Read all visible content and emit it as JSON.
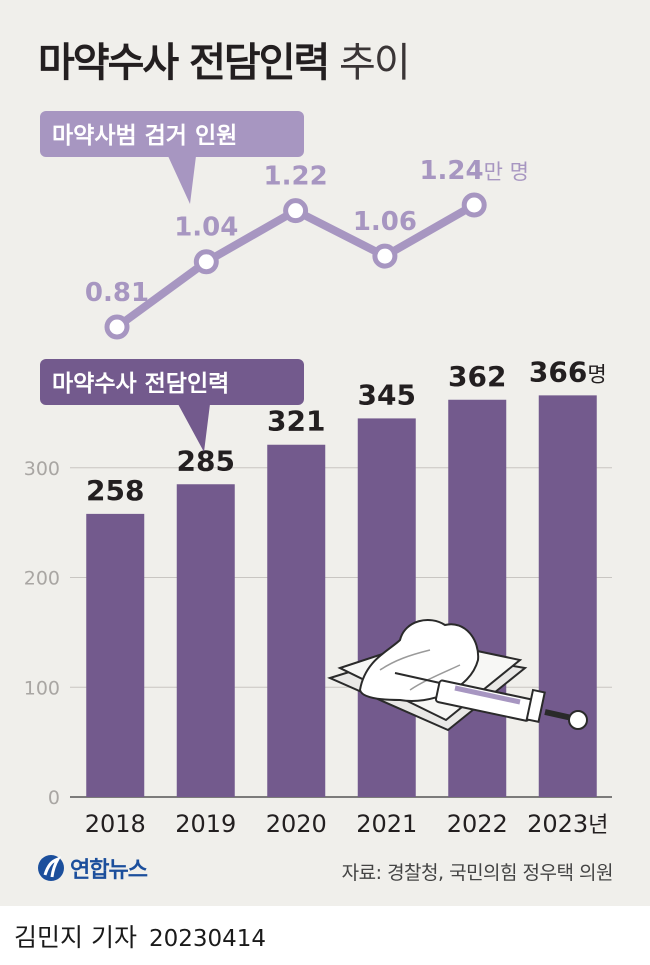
{
  "title": {
    "bold": "마약수사 전담인력",
    "light": "추이"
  },
  "chart_data": [
    {
      "type": "line",
      "label": "마약사범 검거 인원",
      "unit": "만 명",
      "x": [
        "2018",
        "2019",
        "2020",
        "2021",
        "2022"
      ],
      "values": [
        0.81,
        1.04,
        1.22,
        1.06,
        1.24
      ],
      "value_labels": [
        "0.81",
        "1.04",
        "1.22",
        "1.06",
        "1.24"
      ],
      "ylim": [
        0.6,
        1.4
      ]
    },
    {
      "type": "bar",
      "label": "마약수사 전담인력",
      "unit": "명",
      "categories": [
        "2018",
        "2019",
        "2020",
        "2021",
        "2022",
        "2023"
      ],
      "values": [
        258,
        285,
        321,
        345,
        362,
        366
      ],
      "value_labels": [
        "258",
        "285",
        "321",
        "345",
        "362",
        "366"
      ],
      "x_unit": "년",
      "y_ticks": [
        "0",
        "100",
        "200",
        "300"
      ],
      "y_tick_values": [
        0,
        100,
        200,
        300
      ],
      "ylim": [
        0,
        380
      ],
      "grid": true
    }
  ],
  "colors": {
    "line": "#a796c1",
    "bar": "#735a8d",
    "line_label_box": "#a796c1",
    "bar_label_box": "#735a8d",
    "background": "#f0efeb",
    "grid": "#c9c6c2"
  },
  "icons": {
    "illustration": "syringe-and-powder-icon",
    "logo": "yonhap-logo-icon"
  },
  "footer": {
    "logo_text": "연합뉴스",
    "source": "자료: 경찰청, 국민의힘 정우택 의원",
    "byline": "김민지 기자",
    "date": "20230414"
  }
}
